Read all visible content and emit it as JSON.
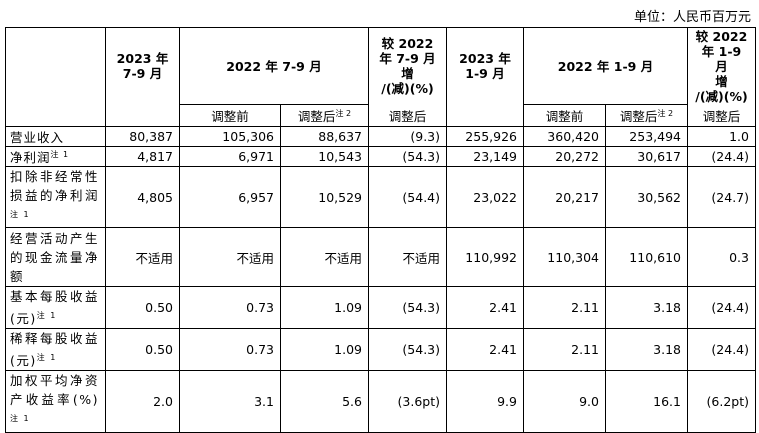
{
  "unit_label": "单位：人民币百万元",
  "headers": {
    "q3_2023": "2023 年\n7-9 月",
    "q3_2022": "2022 年 7-9 月",
    "q3_change": "较 2022\n年 7-9 月\n增\n/(减)(%)",
    "ytd_2023": "2023 年\n1-9 月",
    "ytd_2022": "2022 年 1-9 月",
    "ytd_change": "较 2022\n年 1-9 月\n增\n/(减)(%)",
    "before_adjust": "调整前",
    "after_adjust": "调整后",
    "after_note": "注 2",
    "adjusted": "调整后"
  },
  "rows": [
    {
      "label": "营业收入",
      "note": "",
      "values": [
        "80,387",
        "105,306",
        "88,637",
        "(9.3)",
        "255,926",
        "360,420",
        "253,494",
        "1.0"
      ]
    },
    {
      "label": "净利润",
      "note": "注 1",
      "values": [
        "4,817",
        "6,971",
        "10,543",
        "(54.3)",
        "23,149",
        "20,272",
        "30,617",
        "(24.4)"
      ]
    },
    {
      "label": "扣除非经常性损益的净利润",
      "note": "注 1",
      "values": [
        "4,805",
        "6,957",
        "10,529",
        "(54.4)",
        "23,022",
        "20,217",
        "30,562",
        "(24.7)"
      ]
    },
    {
      "label": "经营活动产生的现金流量净额",
      "note": "",
      "values": [
        "不适用",
        "不适用",
        "不适用",
        "不适用",
        "110,992",
        "110,304",
        "110,610",
        "0.3"
      ]
    },
    {
      "label": "基本每股收益(元)",
      "note": "注 1",
      "values": [
        "0.50",
        "0.73",
        "1.09",
        "(54.3)",
        "2.41",
        "2.11",
        "3.18",
        "(24.4)"
      ]
    },
    {
      "label": "稀释每股收益(元)",
      "note": "注 1",
      "values": [
        "0.50",
        "0.73",
        "1.09",
        "(54.3)",
        "2.41",
        "2.11",
        "3.18",
        "(24.4)"
      ]
    },
    {
      "label": "加权平均净资产收益率(%)",
      "note": "注 1",
      "values": [
        "2.0",
        "3.1",
        "5.6",
        "(3.6pt)",
        "9.9",
        "9.0",
        "16.1",
        "(6.2pt)"
      ]
    }
  ]
}
